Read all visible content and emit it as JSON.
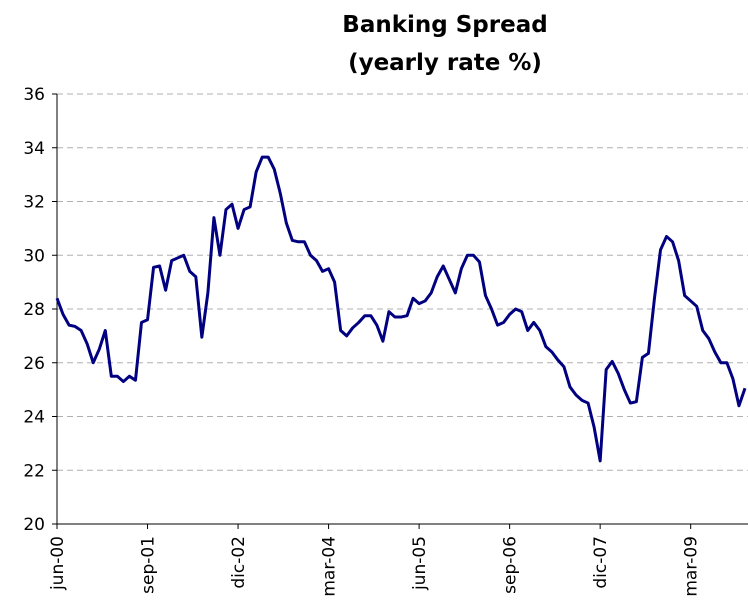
{
  "chart_data": {
    "type": "line",
    "title": "Banking Spread",
    "subtitle": "(yearly rate %)",
    "categories": [
      "jun-00",
      null,
      null,
      null,
      null,
      null,
      null,
      null,
      null,
      null,
      null,
      null,
      null,
      null,
      null,
      "sep-01",
      null,
      null,
      null,
      null,
      null,
      null,
      null,
      null,
      null,
      null,
      null,
      null,
      null,
      null,
      "dic-02",
      null,
      null,
      null,
      null,
      null,
      null,
      null,
      null,
      null,
      null,
      null,
      null,
      null,
      null,
      "mar-04",
      null,
      null,
      null,
      null,
      null,
      null,
      null,
      null,
      null,
      null,
      null,
      null,
      null,
      null,
      "jun-05",
      null,
      null,
      null,
      null,
      null,
      null,
      null,
      null,
      null,
      null,
      null,
      null,
      null,
      null,
      "sep-06",
      null,
      null,
      null,
      null,
      null,
      null,
      null,
      null,
      null,
      null,
      null,
      null,
      null,
      null,
      "dic-07",
      null,
      null,
      null,
      null,
      null,
      null,
      null,
      null,
      null,
      null,
      null,
      null,
      null,
      null,
      "mar-09",
      null,
      null,
      null,
      null,
      null,
      null,
      null,
      null,
      null
    ],
    "series": [
      {
        "color": "#000080",
        "values": [
          28.4,
          27.8,
          27.4,
          27.35,
          27.2,
          26.7,
          26.0,
          26.5,
          27.2,
          25.5,
          25.5,
          25.3,
          25.5,
          25.35,
          27.5,
          27.6,
          29.55,
          29.6,
          28.7,
          29.8,
          29.9,
          30.0,
          29.4,
          29.2,
          26.95,
          28.6,
          31.4,
          30.0,
          31.7,
          31.9,
          31.0,
          31.7,
          31.8,
          33.1,
          33.65,
          33.65,
          33.2,
          32.3,
          31.2,
          30.55,
          30.5,
          30.5,
          30.0,
          29.8,
          29.4,
          29.5,
          29.0,
          27.2,
          27.0,
          27.3,
          27.5,
          27.75,
          27.75,
          27.4,
          26.8,
          27.9,
          27.7,
          27.7,
          27.75,
          28.4,
          28.2,
          28.3,
          28.6,
          29.2,
          29.6,
          29.1,
          28.6,
          29.5,
          30.0,
          30.0,
          29.75,
          28.5,
          28.0,
          27.4,
          27.5,
          27.8,
          28.0,
          27.9,
          27.2,
          27.5,
          27.2,
          26.6,
          26.4,
          26.1,
          25.85,
          25.1,
          24.8,
          24.6,
          24.5,
          23.6,
          22.35,
          25.75,
          26.05,
          25.6,
          25.0,
          24.5,
          24.55,
          26.2,
          26.35,
          28.4,
          30.2,
          30.7,
          30.5,
          29.8,
          28.5,
          28.3,
          28.1,
          27.2,
          26.9,
          26.4,
          26.0,
          26.0,
          25.4,
          24.4,
          25.05
        ]
      }
    ],
    "ylim": [
      20,
      36
    ],
    "yticks": [
      20,
      22,
      24,
      26,
      28,
      30,
      32,
      34,
      36
    ],
    "grid": true
  }
}
